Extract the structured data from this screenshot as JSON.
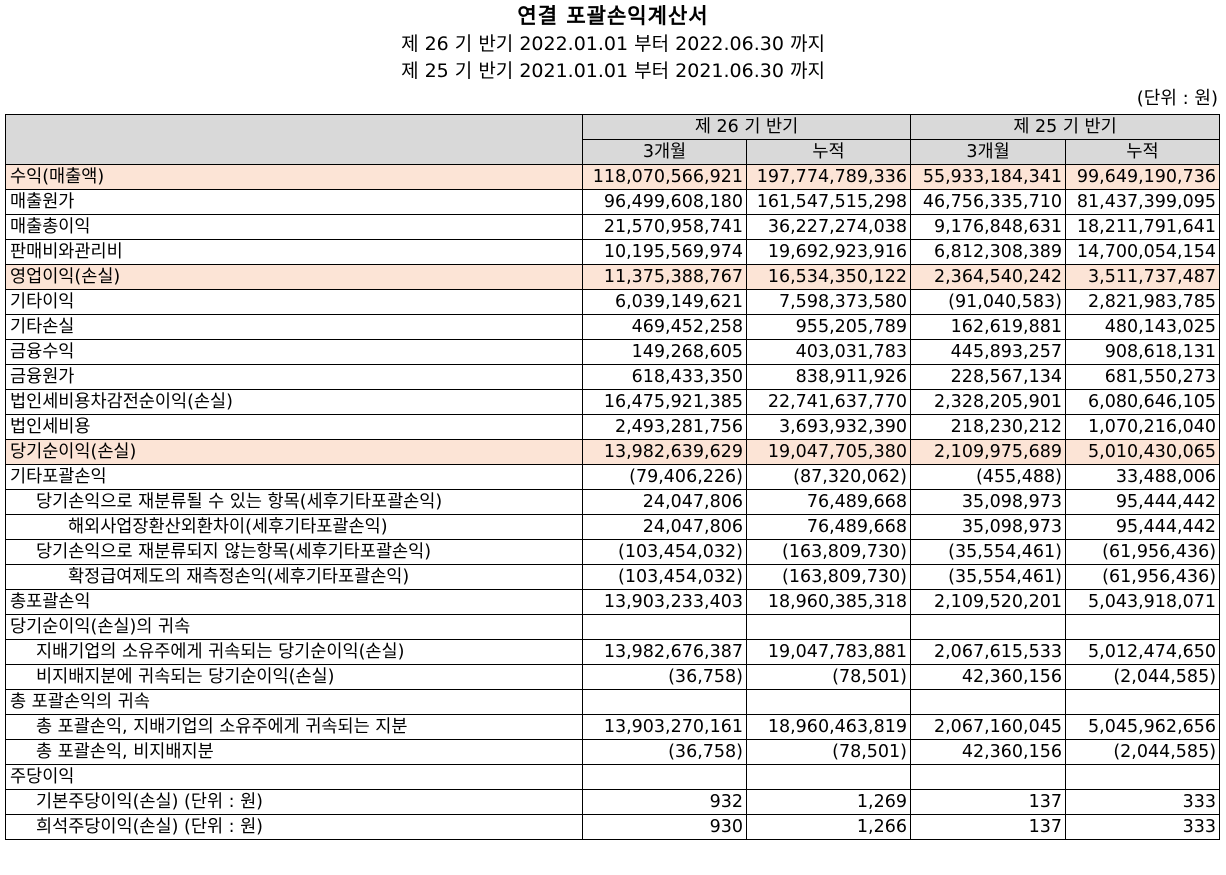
{
  "header": {
    "title": "연결 포괄손익계산서",
    "period_current": "제 26 기 반기 2022.01.01 부터 2022.06.30 까지",
    "period_prior": "제 25 기 반기 2021.01.01 부터 2021.06.30 까지",
    "unit": "(단위 : 원)"
  },
  "table": {
    "period_headers": [
      "제 26 기 반기",
      "제 25 기 반기"
    ],
    "sub_headers": [
      "3개월",
      "누적",
      "3개월",
      "누적"
    ],
    "rows": [
      {
        "label": "수익(매출액)",
        "indent": 0,
        "highlight": true,
        "values": [
          "118,070,566,921",
          "197,774,789,336",
          "55,933,184,341",
          "99,649,190,736"
        ]
      },
      {
        "label": "매출원가",
        "indent": 0,
        "highlight": false,
        "values": [
          "96,499,608,180",
          "161,547,515,298",
          "46,756,335,710",
          "81,437,399,095"
        ]
      },
      {
        "label": "매출총이익",
        "indent": 0,
        "highlight": false,
        "values": [
          "21,570,958,741",
          "36,227,274,038",
          "9,176,848,631",
          "18,211,791,641"
        ]
      },
      {
        "label": "판매비와관리비",
        "indent": 0,
        "highlight": false,
        "values": [
          "10,195,569,974",
          "19,692,923,916",
          "6,812,308,389",
          "14,700,054,154"
        ]
      },
      {
        "label": "영업이익(손실)",
        "indent": 0,
        "highlight": true,
        "values": [
          "11,375,388,767",
          "16,534,350,122",
          "2,364,540,242",
          "3,511,737,487"
        ]
      },
      {
        "label": "기타이익",
        "indent": 0,
        "highlight": false,
        "values": [
          "6,039,149,621",
          "7,598,373,580",
          "(91,040,583)",
          "2,821,983,785"
        ]
      },
      {
        "label": "기타손실",
        "indent": 0,
        "highlight": false,
        "values": [
          "469,452,258",
          "955,205,789",
          "162,619,881",
          "480,143,025"
        ]
      },
      {
        "label": "금융수익",
        "indent": 0,
        "highlight": false,
        "values": [
          "149,268,605",
          "403,031,783",
          "445,893,257",
          "908,618,131"
        ]
      },
      {
        "label": "금융원가",
        "indent": 0,
        "highlight": false,
        "values": [
          "618,433,350",
          "838,911,926",
          "228,567,134",
          "681,550,273"
        ]
      },
      {
        "label": "법인세비용차감전순이익(손실)",
        "indent": 0,
        "highlight": false,
        "values": [
          "16,475,921,385",
          "22,741,637,770",
          "2,328,205,901",
          "6,080,646,105"
        ]
      },
      {
        "label": "법인세비용",
        "indent": 0,
        "highlight": false,
        "values": [
          "2,493,281,756",
          "3,693,932,390",
          "218,230,212",
          "1,070,216,040"
        ]
      },
      {
        "label": "당기순이익(손실)",
        "indent": 0,
        "highlight": true,
        "values": [
          "13,982,639,629",
          "19,047,705,380",
          "2,109,975,689",
          "5,010,430,065"
        ]
      },
      {
        "label": "기타포괄손익",
        "indent": 0,
        "highlight": false,
        "values": [
          "(79,406,226)",
          "(87,320,062)",
          "(455,488)",
          "33,488,006"
        ]
      },
      {
        "label": "당기손익으로 재분류될 수 있는 항목(세후기타포괄손익)",
        "indent": 1,
        "highlight": false,
        "values": [
          "24,047,806",
          "76,489,668",
          "35,098,973",
          "95,444,442"
        ]
      },
      {
        "label": "해외사업장환산외환차이(세후기타포괄손익)",
        "indent": 2,
        "highlight": false,
        "values": [
          "24,047,806",
          "76,489,668",
          "35,098,973",
          "95,444,442"
        ]
      },
      {
        "label": "당기손익으로 재분류되지 않는항목(세후기타포괄손익)",
        "indent": 1,
        "highlight": false,
        "values": [
          "(103,454,032)",
          "(163,809,730)",
          "(35,554,461)",
          "(61,956,436)"
        ]
      },
      {
        "label": "확정급여제도의 재측정손익(세후기타포괄손익)",
        "indent": 2,
        "highlight": false,
        "values": [
          "(103,454,032)",
          "(163,809,730)",
          "(35,554,461)",
          "(61,956,436)"
        ]
      },
      {
        "label": "총포괄손익",
        "indent": 0,
        "highlight": false,
        "values": [
          "13,903,233,403",
          "18,960,385,318",
          "2,109,520,201",
          "5,043,918,071"
        ]
      },
      {
        "label": "당기순이익(손실)의 귀속",
        "indent": 0,
        "highlight": false,
        "values": [
          "",
          "",
          "",
          ""
        ]
      },
      {
        "label": "지배기업의 소유주에게 귀속되는 당기순이익(손실)",
        "indent": 1,
        "highlight": false,
        "values": [
          "13,982,676,387",
          "19,047,783,881",
          "2,067,615,533",
          "5,012,474,650"
        ]
      },
      {
        "label": "비지배지분에 귀속되는 당기순이익(손실)",
        "indent": 1,
        "highlight": false,
        "values": [
          "(36,758)",
          "(78,501)",
          "42,360,156",
          "(2,044,585)"
        ]
      },
      {
        "label": "총 포괄손익의 귀속",
        "indent": 0,
        "highlight": false,
        "values": [
          "",
          "",
          "",
          ""
        ]
      },
      {
        "label": "총 포괄손익, 지배기업의 소유주에게 귀속되는 지분",
        "indent": 1,
        "highlight": false,
        "values": [
          "13,903,270,161",
          "18,960,463,819",
          "2,067,160,045",
          "5,045,962,656"
        ]
      },
      {
        "label": "총 포괄손익, 비지배지분",
        "indent": 1,
        "highlight": false,
        "values": [
          "(36,758)",
          "(78,501)",
          "42,360,156",
          "(2,044,585)"
        ]
      },
      {
        "label": "주당이익",
        "indent": 0,
        "highlight": false,
        "values": [
          "",
          "",
          "",
          ""
        ]
      },
      {
        "label": "기본주당이익(손실) (단위 : 원)",
        "indent": 1,
        "highlight": false,
        "values": [
          "932",
          "1,269",
          "137",
          "333"
        ]
      },
      {
        "label": "희석주당이익(손실) (단위 : 원)",
        "indent": 1,
        "highlight": false,
        "values": [
          "930",
          "1,266",
          "137",
          "333"
        ]
      }
    ]
  },
  "colors": {
    "header_bg": "#d9d9d9",
    "highlight_bg": "#fce4d6",
    "border": "#000000"
  }
}
